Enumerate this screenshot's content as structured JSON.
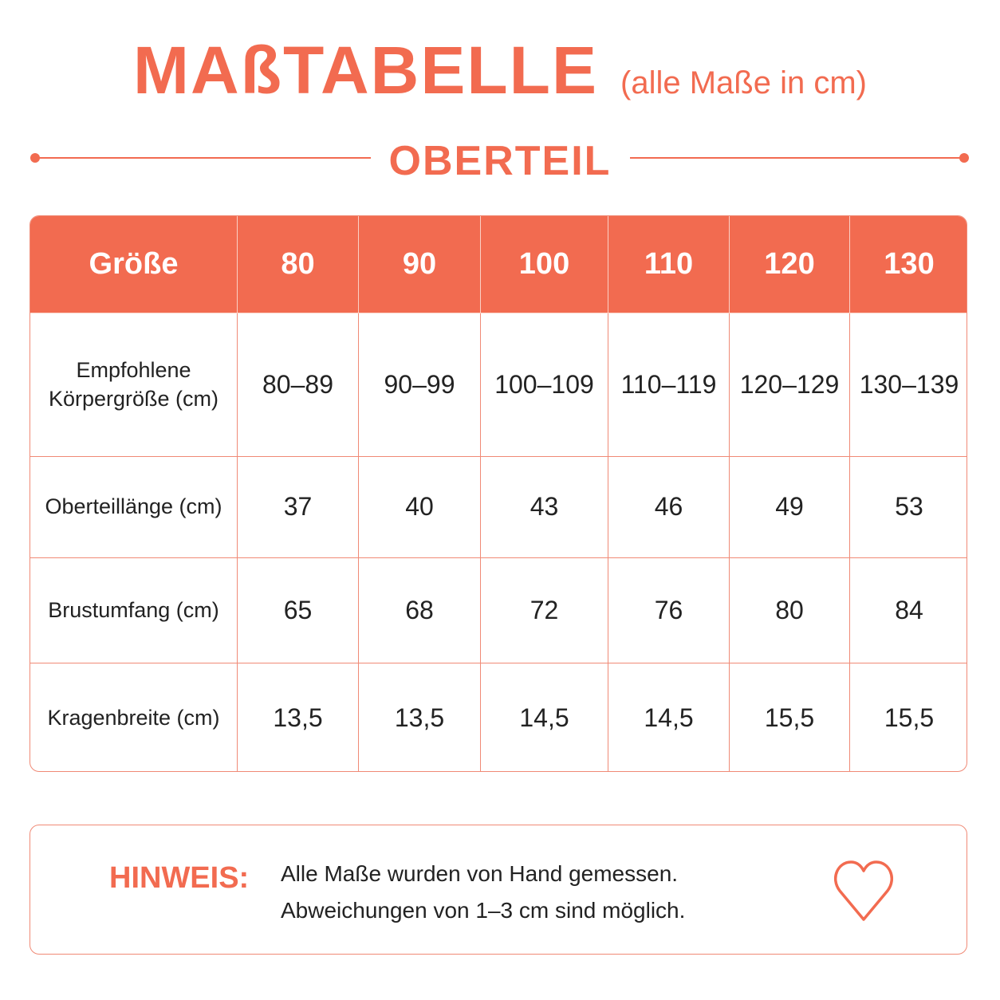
{
  "header": {
    "title": "MAßTABELLE",
    "subtitle": "(alle Maße in cm)",
    "section": "OBERTEIL"
  },
  "table": {
    "header": [
      "Größe",
      "80",
      "90",
      "100",
      "110",
      "120",
      "130"
    ],
    "rows": [
      [
        "Empfohlene\nKörpergröße (cm)",
        "80–89",
        "90–99",
        "100–109",
        "110–119",
        "120–129",
        "130–139"
      ],
      [
        "Oberteillänge (cm)",
        "37",
        "40",
        "43",
        "46",
        "49",
        "53"
      ],
      [
        "Brustumfang (cm)",
        "65",
        "68",
        "72",
        "76",
        "80",
        "84"
      ],
      [
        "Kragenbreite (cm)",
        "13,5",
        "13,5",
        "14,5",
        "14,5",
        "15,5",
        "15,5"
      ]
    ]
  },
  "note": {
    "label": "HINWEIS:",
    "lines": [
      "Alle Maße wurden von Hand gemessen.",
      "Abweichungen von 1–3 cm sind möglich."
    ]
  }
}
